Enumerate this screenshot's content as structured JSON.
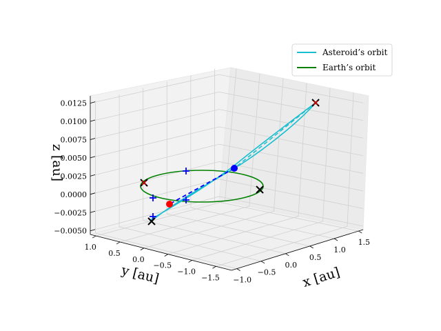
{
  "chart_data": {
    "type": "line",
    "subtype": "3d-orbit-plot",
    "title": "",
    "axes": {
      "x": {
        "label": "x [au]",
        "ticks": [
          "−1.0",
          "−0.5",
          "0.0",
          "0.5",
          "1.0",
          "1.5"
        ]
      },
      "y": {
        "label": "y [au]",
        "ticks": [
          "1.0",
          "0.5",
          "0.0",
          "−0.5",
          "−1.0",
          "−1.5"
        ]
      },
      "z": {
        "label": "z [au]",
        "ticks": [
          "−0.0050",
          "−0.0025",
          "0.0000",
          "0.0025",
          "0.0050",
          "0.0075",
          "0.0100",
          "0.0125"
        ],
        "range": [
          -0.0055,
          0.0135
        ]
      }
    },
    "grid": true,
    "legend": {
      "placement": "top-right",
      "entries": [
        {
          "label": "Asteroid’s orbit",
          "color": "#17becf"
        },
        {
          "label": "Earth’s orbit",
          "color": "#008000"
        }
      ]
    },
    "series": [
      {
        "name": "Asteroid’s orbit",
        "kind": "ellipse",
        "color": "#17becf"
      },
      {
        "name": "Earth’s orbit",
        "kind": "circle",
        "color": "#008000"
      }
    ],
    "markers": {
      "colors": {
        "sun_position": "#0000ff",
        "point": "#ff0000",
        "cross": "#000000",
        "plus": "#0000ff"
      }
    }
  }
}
